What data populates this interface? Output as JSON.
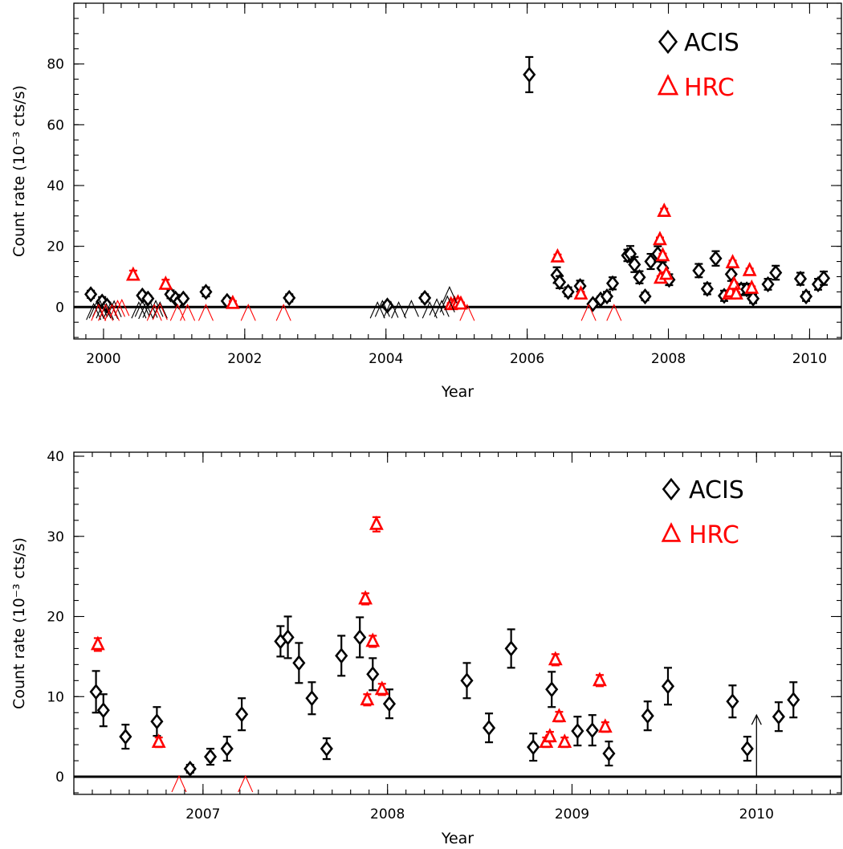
{
  "colors": {
    "acis": "#000000",
    "hrc": "#ff0000",
    "axis": "#000000"
  },
  "chart_data": [
    {
      "type": "scatter",
      "xlabel": "Year",
      "ylabel": "Count rate (10⁻³ cts/s)",
      "xlim": [
        1999.58,
        2010.45
      ],
      "ylim": [
        -10.5,
        100
      ],
      "x_ticks": [
        2000,
        2002,
        2004,
        2006,
        2008,
        2010
      ],
      "x_tick_labels": [
        "2000",
        "2002",
        "2004",
        "2006",
        "2008",
        "2010"
      ],
      "x_minor_step": 0.25,
      "y_ticks": [
        0,
        20,
        40,
        60,
        80
      ],
      "y_tick_labels": [
        "0",
        "20",
        "40",
        "60",
        "80"
      ],
      "y_minor_step": 5,
      "zero_line": true,
      "legend": [
        {
          "symbol": "diamond",
          "label": "ACIS",
          "color": "#000000"
        },
        {
          "symbol": "triangle",
          "label": "HRC",
          "color": "#ff0000"
        }
      ],
      "legend_position": "top-right",
      "series": [
        {
          "name": "ACIS",
          "marker": "diamond",
          "color": "#000000",
          "points": [
            [
              1999.82,
              4.2,
              1.2
            ],
            [
              1999.98,
              1.8,
              1.5
            ],
            [
              2000.05,
              0.5,
              1.0
            ],
            [
              2000.55,
              3.8,
              1.0
            ],
            [
              2000.63,
              2.8,
              1.0
            ],
            [
              2000.95,
              4.2,
              1.3
            ],
            [
              2001.02,
              2.8,
              1.0
            ],
            [
              2001.07,
              1.8,
              1.0
            ],
            [
              2001.13,
              2.8,
              1.0
            ],
            [
              2001.45,
              5.0,
              1.5
            ],
            [
              2001.75,
              2.0,
              1.0
            ],
            [
              2002.63,
              3.0,
              1.2
            ],
            [
              2004.02,
              0.5,
              1.0
            ],
            [
              2004.55,
              3.0,
              1.2
            ],
            [
              2006.03,
              76.5,
              5.8
            ],
            [
              2006.42,
              10.5,
              2.6
            ],
            [
              2006.46,
              8.2,
              2.0
            ],
            [
              2006.58,
              5.0,
              1.5
            ],
            [
              2006.75,
              6.9,
              1.8
            ],
            [
              2006.93,
              1.0,
              0.5
            ],
            [
              2007.04,
              2.5,
              1.0
            ],
            [
              2007.13,
              3.5,
              1.5
            ],
            [
              2007.21,
              7.8,
              2.0
            ],
            [
              2007.42,
              17.0,
              1.9
            ],
            [
              2007.46,
              17.5,
              2.6
            ],
            [
              2007.52,
              14.0,
              2.5
            ],
            [
              2007.59,
              9.8,
              2.0
            ],
            [
              2007.67,
              3.5,
              1.3
            ],
            [
              2007.75,
              15.0,
              2.5
            ],
            [
              2007.85,
              17.5,
              2.5
            ],
            [
              2007.92,
              12.8,
              2.0
            ],
            [
              2008.01,
              9.0,
              1.8
            ],
            [
              2008.43,
              12.0,
              2.2
            ],
            [
              2008.55,
              6.0,
              1.8
            ],
            [
              2008.67,
              16.0,
              2.4
            ],
            [
              2008.79,
              3.7,
              1.7
            ],
            [
              2008.89,
              10.8,
              2.2
            ],
            [
              2009.03,
              5.8,
              1.8
            ],
            [
              2009.11,
              5.8,
              1.9
            ],
            [
              2009.2,
              2.8,
              1.5
            ],
            [
              2009.41,
              7.5,
              1.8
            ],
            [
              2009.52,
              11.3,
              2.3
            ],
            [
              2009.87,
              9.3,
              2.0
            ],
            [
              2009.95,
              3.5,
              1.5
            ],
            [
              2010.12,
              7.5,
              1.8
            ],
            [
              2010.2,
              9.5,
              2.2
            ]
          ]
        },
        {
          "name": "HRC",
          "marker": "triangle",
          "color": "#ff0000",
          "points": [
            [
              2000.42,
              10.5,
              1.5
            ],
            [
              2000.88,
              7.5,
              1.5
            ],
            [
              2001.83,
              1.2,
              0.8
            ],
            [
              2004.92,
              0.8,
              0.5
            ],
            [
              2004.97,
              1.0,
              0.5
            ],
            [
              2005.02,
              1.4,
              0.5
            ],
            [
              2005.06,
              1.0,
              0.5
            ],
            [
              2006.43,
              16.5,
              0.8
            ],
            [
              2006.76,
              4.3,
              0.6
            ],
            [
              2007.88,
              22.2,
              0.7
            ],
            [
              2007.89,
              9.5,
              0.7
            ],
            [
              2007.92,
              16.9,
              0.7
            ],
            [
              2007.94,
              31.5,
              0.9
            ],
            [
              2007.97,
              10.8,
              0.7
            ],
            [
              2008.86,
              4.3,
              0.6
            ],
            [
              2008.88,
              5.0,
              0.6
            ],
            [
              2008.91,
              14.6,
              0.7
            ],
            [
              2008.93,
              7.5,
              0.6
            ],
            [
              2008.96,
              4.3,
              0.6
            ],
            [
              2009.15,
              12.0,
              0.7
            ],
            [
              2009.18,
              6.2,
              0.6
            ]
          ]
        },
        {
          "name": "ACIS upper limits",
          "marker": "caret",
          "color": "#000000",
          "points": [
            [
              1999.86,
              -0.5
            ],
            [
              1999.9,
              0.0
            ],
            [
              1999.95,
              0.5
            ],
            [
              2000.0,
              0.0
            ],
            [
              2000.04,
              -0.5
            ],
            [
              2000.1,
              -0.2
            ],
            [
              2000.15,
              0.4
            ],
            [
              2000.5,
              0.0
            ],
            [
              2000.55,
              0.5
            ],
            [
              2000.6,
              -0.2
            ],
            [
              2000.66,
              0.2
            ],
            [
              2000.74,
              0.5
            ],
            [
              2000.8,
              0.0
            ],
            [
              2003.88,
              0.0
            ],
            [
              2003.95,
              0.5
            ],
            [
              2004.07,
              0.2
            ],
            [
              2004.18,
              0.0
            ],
            [
              2004.36,
              0.5
            ],
            [
              2004.62,
              0.0
            ],
            [
              2004.72,
              1.0
            ],
            [
              2004.79,
              0.5
            ],
            [
              2004.87,
              2.0
            ],
            [
              2004.9,
              5.0
            ]
          ]
        },
        {
          "name": "HRC upper limits",
          "marker": "caret",
          "color": "#ff0000",
          "points": [
            [
              1999.93,
              -0.8
            ],
            [
              2000.03,
              -0.8
            ],
            [
              2000.12,
              -0.8
            ],
            [
              2000.2,
              0.5
            ],
            [
              2000.26,
              0.8
            ],
            [
              2000.72,
              -0.8
            ],
            [
              2000.8,
              -0.5
            ],
            [
              2001.05,
              -0.8
            ],
            [
              2001.19,
              -0.8
            ],
            [
              2001.45,
              -0.8
            ],
            [
              2002.05,
              -0.8
            ],
            [
              2002.55,
              -0.8
            ],
            [
              2005.15,
              -0.8
            ],
            [
              2006.87,
              -0.8
            ],
            [
              2007.23,
              -0.8
            ]
          ]
        }
      ]
    },
    {
      "type": "scatter",
      "xlabel": "Year",
      "ylabel": "Count rate (10⁻³ cts/s)",
      "xlim": [
        2006.3,
        2010.46
      ],
      "ylim": [
        -2.2,
        40.5
      ],
      "x_ticks": [
        2007,
        2008,
        2009,
        2010
      ],
      "x_tick_labels": [
        "2007",
        "2008",
        "2009",
        "2010"
      ],
      "x_minor_step": 0.1,
      "y_ticks": [
        0,
        10,
        20,
        30,
        40
      ],
      "y_tick_labels": [
        "0",
        "10",
        "20",
        "30",
        "40"
      ],
      "y_minor_step": 2,
      "zero_line": true,
      "legend": [
        {
          "symbol": "diamond",
          "label": "ACIS",
          "color": "#000000"
        },
        {
          "symbol": "triangle",
          "label": "HRC",
          "color": "#ff0000"
        }
      ],
      "legend_position": "top-right",
      "series": [
        {
          "name": "ACIS",
          "marker": "diamond",
          "color": "#000000",
          "points": [
            [
              2006.42,
              10.6,
              2.6
            ],
            [
              2006.46,
              8.3,
              2.0
            ],
            [
              2006.58,
              5.0,
              1.5
            ],
            [
              2006.75,
              6.9,
              1.8
            ],
            [
              2006.93,
              1.0,
              0.5
            ],
            [
              2007.04,
              2.5,
              1.0
            ],
            [
              2007.13,
              3.5,
              1.5
            ],
            [
              2007.21,
              7.8,
              2.0
            ],
            [
              2007.42,
              16.9,
              1.9
            ],
            [
              2007.46,
              17.4,
              2.6
            ],
            [
              2007.52,
              14.2,
              2.5
            ],
            [
              2007.59,
              9.8,
              2.0
            ],
            [
              2007.67,
              3.5,
              1.3
            ],
            [
              2007.75,
              15.1,
              2.5
            ],
            [
              2007.85,
              17.4,
              2.5
            ],
            [
              2007.92,
              12.8,
              2.0
            ],
            [
              2008.01,
              9.1,
              1.8
            ],
            [
              2008.43,
              12.0,
              2.2
            ],
            [
              2008.55,
              6.1,
              1.8
            ],
            [
              2008.67,
              16.0,
              2.4
            ],
            [
              2008.79,
              3.7,
              1.7
            ],
            [
              2008.89,
              10.9,
              2.2
            ],
            [
              2009.03,
              5.7,
              1.8
            ],
            [
              2009.11,
              5.8,
              1.9
            ],
            [
              2009.2,
              2.9,
              1.5
            ],
            [
              2009.41,
              7.6,
              1.8
            ],
            [
              2009.52,
              11.3,
              2.3
            ],
            [
              2009.87,
              9.4,
              2.0
            ],
            [
              2009.95,
              3.5,
              1.5
            ],
            [
              2010.12,
              7.5,
              1.8
            ],
            [
              2010.2,
              9.6,
              2.2
            ]
          ]
        },
        {
          "name": "HRC",
          "marker": "triangle",
          "color": "#ff0000",
          "points": [
            [
              2006.43,
              16.5,
              0.8
            ],
            [
              2006.76,
              4.3,
              0.6
            ],
            [
              2007.88,
              22.2,
              0.7
            ],
            [
              2007.89,
              9.6,
              0.7
            ],
            [
              2007.92,
              16.9,
              0.7
            ],
            [
              2007.94,
              31.5,
              0.9
            ],
            [
              2007.97,
              10.9,
              0.7
            ],
            [
              2008.86,
              4.3,
              0.6
            ],
            [
              2008.88,
              5.0,
              0.6
            ],
            [
              2008.91,
              14.6,
              0.7
            ],
            [
              2008.93,
              7.5,
              0.6
            ],
            [
              2008.96,
              4.3,
              0.6
            ],
            [
              2009.15,
              12.0,
              0.7
            ],
            [
              2009.18,
              6.2,
              0.6
            ]
          ]
        },
        {
          "name": "HRC upper limits",
          "marker": "caret",
          "color": "#ff0000",
          "points": [
            [
              2006.87,
              -0.5
            ],
            [
              2007.23,
              -0.5
            ]
          ]
        },
        {
          "name": "ACIS upper limit",
          "marker": "arrow",
          "color": "#000000",
          "points": [
            [
              2010.0,
              7.7
            ]
          ]
        }
      ]
    }
  ]
}
